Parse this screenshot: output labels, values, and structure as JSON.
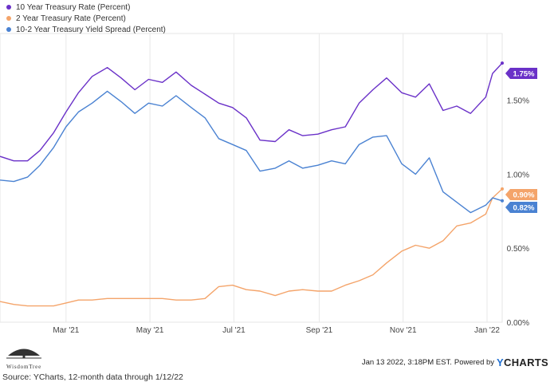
{
  "legend": [
    {
      "label": "10 Year Treasury Rate (Percent)",
      "color": "#6a31c8"
    },
    {
      "label": "2 Year Treasury Rate (Percent)",
      "color": "#f4a46a"
    },
    {
      "label": "10-2 Year Treasury Yield Spread (Percent)",
      "color": "#4a82d2"
    }
  ],
  "chart_data": {
    "type": "line",
    "y_ticks": [
      "0.00%",
      "0.50%",
      "1.00%",
      "1.50%"
    ],
    "x_ticks": [
      "Mar '21",
      "May '21",
      "Jul '21",
      "Sep '21",
      "Nov '21",
      "Jan '22"
    ],
    "ylim": [
      0,
      1.95
    ],
    "grid": "vertical",
    "end_labels": [
      "1.75%",
      "0.90%",
      "0.82%"
    ],
    "series": [
      {
        "name": "10 Year Treasury Rate (Percent)",
        "color": "#6a31c8",
        "x": [
          "2021-01-12",
          "2021-01-22",
          "2021-02-01",
          "2021-02-10",
          "2021-02-20",
          "2021-03-01",
          "2021-03-10",
          "2021-03-20",
          "2021-03-31",
          "2021-04-10",
          "2021-04-20",
          "2021-04-30",
          "2021-05-10",
          "2021-05-20",
          "2021-05-31",
          "2021-06-10",
          "2021-06-20",
          "2021-06-30",
          "2021-07-10",
          "2021-07-20",
          "2021-07-31",
          "2021-08-10",
          "2021-08-20",
          "2021-08-31",
          "2021-09-10",
          "2021-09-20",
          "2021-09-30",
          "2021-10-10",
          "2021-10-20",
          "2021-10-31",
          "2021-11-10",
          "2021-11-20",
          "2021-11-30",
          "2021-12-10",
          "2021-12-20",
          "2021-12-31",
          "2022-01-05",
          "2022-01-12"
        ],
        "values": [
          1.12,
          1.09,
          1.09,
          1.16,
          1.28,
          1.42,
          1.55,
          1.66,
          1.72,
          1.65,
          1.57,
          1.64,
          1.62,
          1.69,
          1.6,
          1.54,
          1.48,
          1.45,
          1.38,
          1.23,
          1.22,
          1.3,
          1.26,
          1.27,
          1.3,
          1.32,
          1.48,
          1.57,
          1.65,
          1.55,
          1.52,
          1.61,
          1.43,
          1.46,
          1.41,
          1.52,
          1.68,
          1.75
        ]
      },
      {
        "name": "2 Year Treasury Rate (Percent)",
        "color": "#f4a46a",
        "x": [
          "2021-01-12",
          "2021-01-22",
          "2021-02-01",
          "2021-02-10",
          "2021-02-20",
          "2021-03-01",
          "2021-03-10",
          "2021-03-20",
          "2021-03-31",
          "2021-04-10",
          "2021-04-20",
          "2021-04-30",
          "2021-05-10",
          "2021-05-20",
          "2021-05-31",
          "2021-06-10",
          "2021-06-20",
          "2021-06-30",
          "2021-07-10",
          "2021-07-20",
          "2021-07-31",
          "2021-08-10",
          "2021-08-20",
          "2021-08-31",
          "2021-09-10",
          "2021-09-20",
          "2021-09-30",
          "2021-10-10",
          "2021-10-20",
          "2021-10-31",
          "2021-11-10",
          "2021-11-20",
          "2021-11-30",
          "2021-12-10",
          "2021-12-20",
          "2021-12-31",
          "2022-01-05",
          "2022-01-12"
        ],
        "values": [
          0.14,
          0.12,
          0.11,
          0.11,
          0.11,
          0.13,
          0.15,
          0.15,
          0.16,
          0.16,
          0.16,
          0.16,
          0.16,
          0.15,
          0.15,
          0.16,
          0.24,
          0.25,
          0.22,
          0.21,
          0.18,
          0.21,
          0.22,
          0.21,
          0.21,
          0.25,
          0.28,
          0.32,
          0.4,
          0.48,
          0.52,
          0.5,
          0.55,
          0.65,
          0.67,
          0.73,
          0.84,
          0.9
        ]
      },
      {
        "name": "10-2 Year Treasury Yield Spread (Percent)",
        "color": "#4a82d2",
        "x": [
          "2021-01-12",
          "2021-01-22",
          "2021-02-01",
          "2021-02-10",
          "2021-02-20",
          "2021-03-01",
          "2021-03-10",
          "2021-03-20",
          "2021-03-31",
          "2021-04-10",
          "2021-04-20",
          "2021-04-30",
          "2021-05-10",
          "2021-05-20",
          "2021-05-31",
          "2021-06-10",
          "2021-06-20",
          "2021-06-30",
          "2021-07-10",
          "2021-07-20",
          "2021-07-31",
          "2021-08-10",
          "2021-08-20",
          "2021-08-31",
          "2021-09-10",
          "2021-09-20",
          "2021-09-30",
          "2021-10-10",
          "2021-10-20",
          "2021-10-31",
          "2021-11-10",
          "2021-11-20",
          "2021-11-30",
          "2021-12-10",
          "2021-12-20",
          "2021-12-31",
          "2022-01-05",
          "2022-01-12"
        ],
        "values": [
          0.96,
          0.95,
          0.98,
          1.06,
          1.18,
          1.32,
          1.42,
          1.48,
          1.56,
          1.49,
          1.41,
          1.48,
          1.46,
          1.53,
          1.45,
          1.38,
          1.24,
          1.2,
          1.16,
          1.02,
          1.04,
          1.09,
          1.04,
          1.06,
          1.09,
          1.07,
          1.2,
          1.25,
          1.26,
          1.07,
          1.0,
          1.11,
          0.88,
          0.81,
          0.74,
          0.79,
          0.84,
          0.82
        ]
      }
    ]
  },
  "footer": {
    "timestamp": "Jan 13 2022, 3:18PM EST.",
    "powered_by": "Powered by",
    "brand_y": "Y",
    "brand_rest": "CHARTS",
    "wisdomtree": "WisdomTree"
  },
  "source": "Source: YCharts, 12-month data through 1/12/22"
}
